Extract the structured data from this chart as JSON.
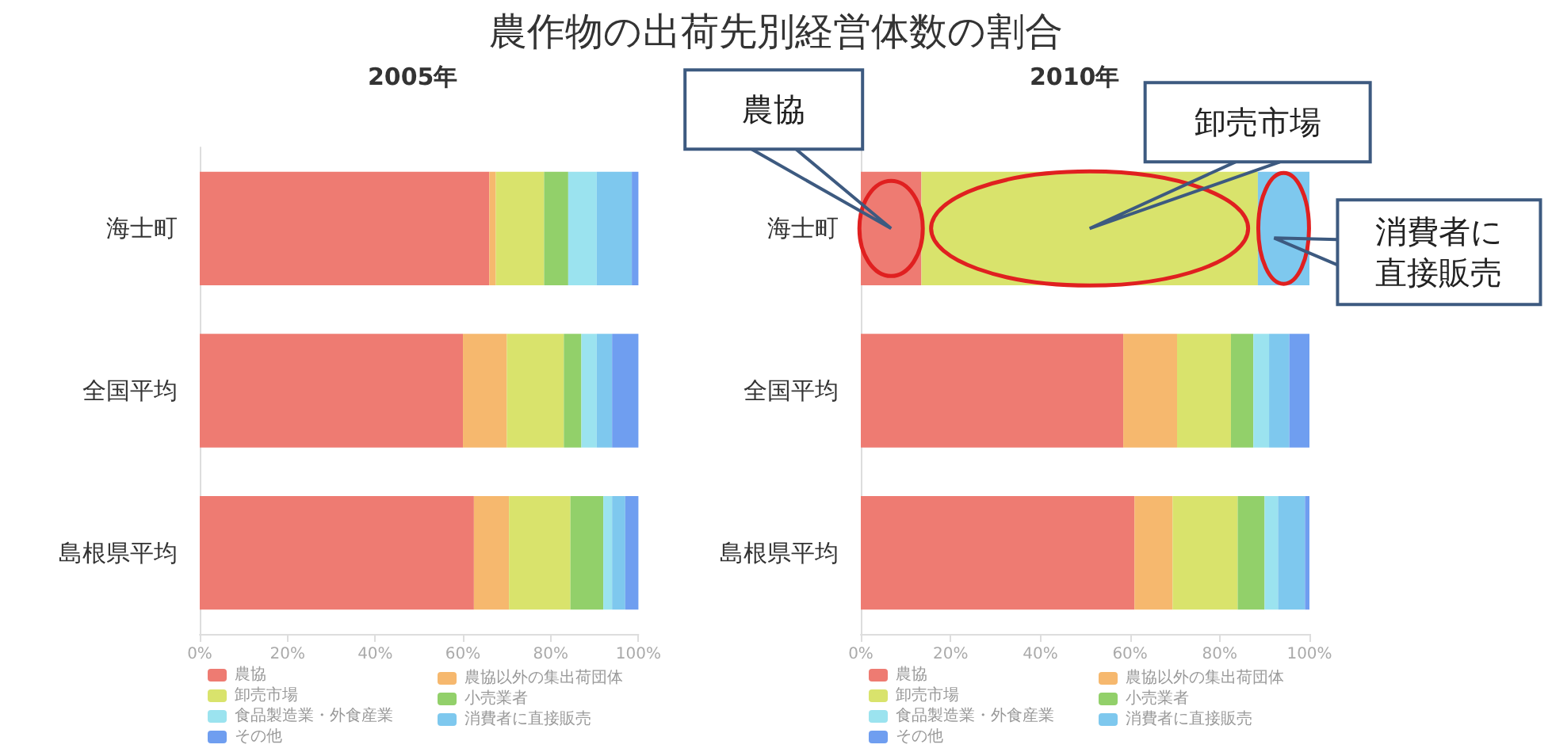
{
  "chart_data": [
    {
      "type": "bar",
      "title": "農作物の出荷先別経営体数の割合",
      "subtitle": "2005年",
      "orientation": "horizontal",
      "stacked": true,
      "categories": [
        "海士町",
        "全国平均",
        "島根県平均"
      ],
      "xlim": [
        0,
        100
      ],
      "xticks": [
        {
          "value": 0,
          "label": "0%"
        },
        {
          "value": 20,
          "label": "20%"
        },
        {
          "value": 40,
          "label": "40%"
        },
        {
          "value": 60,
          "label": "60%"
        },
        {
          "value": 80,
          "label": "80%"
        },
        {
          "value": 100,
          "label": "100%"
        }
      ],
      "grid": false,
      "legend": "bottom",
      "series": [
        {
          "name": "農協",
          "color": "#ee7b72",
          "values": [
            66,
            60,
            62.5
          ]
        },
        {
          "name": "農協以外の集出荷団体",
          "color": "#f6b86e",
          "values": [
            1.5,
            10,
            8
          ]
        },
        {
          "name": "卸売市場",
          "color": "#d9e36c",
          "values": [
            11,
            13,
            14
          ]
        },
        {
          "name": "小売業者",
          "color": "#92d06a",
          "values": [
            5.5,
            4,
            7.5
          ]
        },
        {
          "name": "食品製造業・外食産業",
          "color": "#9be3ef",
          "values": [
            6.5,
            3.5,
            2
          ]
        },
        {
          "name": "消費者に直接販売",
          "color": "#7ec8ee",
          "values": [
            8,
            3.5,
            3
          ]
        },
        {
          "name": "その他",
          "color": "#6f9ef0",
          "values": [
            1.5,
            6,
            3
          ]
        }
      ]
    },
    {
      "type": "bar",
      "subtitle": "2010年",
      "orientation": "horizontal",
      "stacked": true,
      "categories": [
        "海士町",
        "全国平均",
        "島根県平均"
      ],
      "xlim": [
        0,
        100
      ],
      "xticks": [
        {
          "value": 0,
          "label": "0%"
        },
        {
          "value": 20,
          "label": "20%"
        },
        {
          "value": 40,
          "label": "40%"
        },
        {
          "value": 60,
          "label": "60%"
        },
        {
          "value": 80,
          "label": "80%"
        },
        {
          "value": 100,
          "label": "100%"
        }
      ],
      "grid": false,
      "legend": "bottom",
      "series": [
        {
          "name": "農協",
          "color": "#ee7b72",
          "values": [
            13.5,
            58.5,
            61
          ]
        },
        {
          "name": "農協以外の集出荷団体",
          "color": "#f6b86e",
          "values": [
            0,
            12,
            8.5
          ]
        },
        {
          "name": "卸売市場",
          "color": "#d9e36c",
          "values": [
            75,
            12,
            14.5
          ]
        },
        {
          "name": "小売業者",
          "color": "#92d06a",
          "values": [
            0,
            5,
            6
          ]
        },
        {
          "name": "食品製造業・外食産業",
          "color": "#9be3ef",
          "values": [
            0,
            3.5,
            3
          ]
        },
        {
          "name": "消費者に直接販売",
          "color": "#7ec8ee",
          "values": [
            11.5,
            4.5,
            6
          ]
        },
        {
          "name": "その他",
          "color": "#6f9ef0",
          "values": [
            0,
            4.5,
            1
          ]
        }
      ],
      "annotations": [
        "農協",
        "卸売市場",
        "消費者に直接販売"
      ]
    }
  ]
}
